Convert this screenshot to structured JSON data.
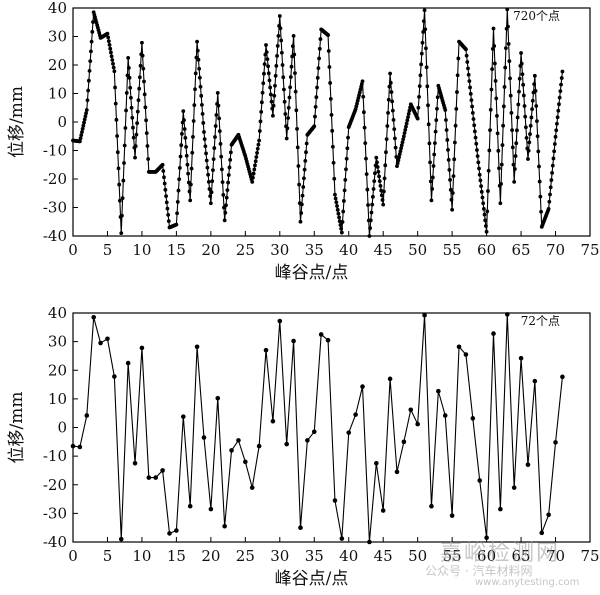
{
  "chart_data": [
    {
      "type": "line",
      "annotation": "720个点",
      "xlabel": "峰谷点/点",
      "ylabel": "位移/mm",
      "xlim": [
        0,
        75
      ],
      "ylim": [
        -40,
        40
      ],
      "xticks": [
        0,
        5,
        10,
        15,
        20,
        25,
        30,
        35,
        40,
        45,
        50,
        55,
        60,
        65,
        70,
        75
      ],
      "yticks": [
        -40,
        -30,
        -20,
        -10,
        0,
        10,
        20,
        30,
        40
      ],
      "grid": false,
      "markers": "dense",
      "series": [
        {
          "x": [
            0,
            1,
            2,
            3,
            4,
            5,
            6,
            7,
            8,
            9,
            10,
            11,
            12,
            13,
            14,
            15,
            16,
            17,
            18,
            19,
            20,
            21,
            22,
            23,
            24,
            25,
            26,
            27,
            28,
            29,
            30,
            31,
            32,
            33,
            34,
            35,
            36,
            37,
            38,
            39,
            40,
            41,
            42,
            43,
            44,
            45,
            46,
            47,
            48,
            49,
            50,
            51,
            52,
            53,
            54,
            55,
            56,
            57,
            58,
            59,
            60,
            61,
            62,
            63,
            64,
            65,
            66,
            67,
            68,
            69,
            70,
            71
          ],
          "y": [
            -6.5,
            -6.8,
            4.2,
            38.5,
            29.5,
            31,
            17.8,
            -39,
            22.5,
            -12.5,
            27.8,
            -17.5,
            -17.5,
            -15,
            -37,
            -36,
            3.8,
            -27.5,
            28.2,
            -3.5,
            -28.5,
            10.2,
            -34.5,
            -8,
            -4.5,
            -12,
            -21,
            -6.5,
            27,
            2.2,
            37.2,
            -5.8,
            30.2,
            -35,
            -4.5,
            -1.5,
            32.5,
            30.5,
            -25.5,
            -38.8,
            -1.8,
            4.5,
            14.3,
            -40,
            -12.5,
            -29,
            17,
            -15.5,
            -5,
            6.2,
            1.2,
            39.2,
            -27.5,
            12.7,
            4.2,
            -30.8,
            28.2,
            25.5,
            3.2,
            -18.5,
            -38.5,
            32.8,
            -28.5,
            39.5,
            -21,
            24.2,
            -13,
            16.2,
            -36.8,
            -30.5,
            -5.2,
            17.7
          ]
        }
      ]
    },
    {
      "type": "line",
      "annotation": "72个点",
      "xlabel": "峰谷点/点",
      "ylabel": "位移/mm",
      "xlim": [
        0,
        75
      ],
      "ylim": [
        -40,
        40
      ],
      "xticks": [
        0,
        5,
        10,
        15,
        20,
        25,
        30,
        35,
        40,
        45,
        50,
        55,
        60,
        65,
        70,
        75
      ],
      "yticks": [
        -40,
        -30,
        -20,
        -10,
        0,
        10,
        20,
        30,
        40
      ],
      "grid": false,
      "markers": "peaks",
      "series": [
        {
          "x": [
            0,
            1,
            2,
            3,
            4,
            5,
            6,
            7,
            8,
            9,
            10,
            11,
            12,
            13,
            14,
            15,
            16,
            17,
            18,
            19,
            20,
            21,
            22,
            23,
            24,
            25,
            26,
            27,
            28,
            29,
            30,
            31,
            32,
            33,
            34,
            35,
            36,
            37,
            38,
            39,
            40,
            41,
            42,
            43,
            44,
            45,
            46,
            47,
            48,
            49,
            50,
            51,
            52,
            53,
            54,
            55,
            56,
            57,
            58,
            59,
            60,
            61,
            62,
            63,
            64,
            65,
            66,
            67,
            68,
            69,
            70,
            71
          ],
          "y": [
            -6.5,
            -6.8,
            4.2,
            38.5,
            29.5,
            31,
            17.8,
            -39,
            22.5,
            -12.5,
            27.8,
            -17.5,
            -17.5,
            -15,
            -37,
            -36,
            3.8,
            -27.5,
            28.2,
            -3.5,
            -28.5,
            10.2,
            -34.5,
            -8,
            -4.5,
            -12,
            -21,
            -6.5,
            27,
            2.2,
            37.2,
            -5.8,
            30.2,
            -35,
            -4.5,
            -1.5,
            32.5,
            30.5,
            -25.5,
            -38.8,
            -1.8,
            4.5,
            14.3,
            -40,
            -12.5,
            -29,
            17,
            -15.5,
            -5,
            6.2,
            1.2,
            39.2,
            -27.5,
            12.7,
            4.2,
            -30.8,
            28.2,
            25.5,
            3.2,
            -18.5,
            -38.5,
            32.8,
            -28.5,
            39.5,
            -21,
            24.2,
            -13,
            16.2,
            -36.8,
            -30.5,
            -5.2,
            17.7
          ]
        }
      ]
    }
  ],
  "watermark": {
    "text_main": "嘉峪检测网",
    "text_sub": "公众号 · 汽车材料网",
    "text_url": "www.anytesting.com"
  }
}
